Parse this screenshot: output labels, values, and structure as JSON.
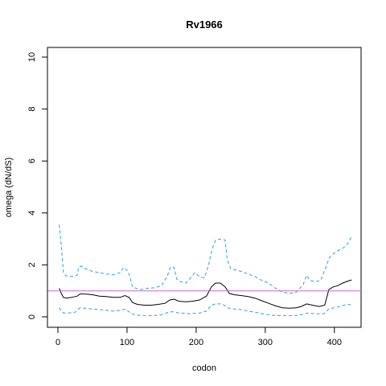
{
  "chart_data": {
    "type": "line",
    "title": "Rv1966",
    "xlabel": "codon",
    "ylabel": "omega (dN/dS)",
    "xlim": [
      0,
      430
    ],
    "ylim": [
      0,
      10
    ],
    "x_ticks": [
      "0",
      "100",
      "200",
      "300",
      "400"
    ],
    "y_ticks": [
      "0",
      "2",
      "4",
      "6",
      "8",
      "10"
    ],
    "reference_line": {
      "y": 1,
      "color": "#cc66cc"
    },
    "colors": {
      "estimate": "#000000",
      "interval": "#2b9fe0"
    },
    "series": [
      {
        "role": "upper",
        "line": "dashed",
        "points": [
          [
            2,
            3.55
          ],
          [
            5,
            2.7
          ],
          [
            8,
            1.7
          ],
          [
            12,
            1.58
          ],
          [
            20,
            1.55
          ],
          [
            28,
            1.6
          ],
          [
            30,
            1.92
          ],
          [
            35,
            1.95
          ],
          [
            40,
            1.85
          ],
          [
            50,
            1.75
          ],
          [
            60,
            1.7
          ],
          [
            70,
            1.65
          ],
          [
            80,
            1.62
          ],
          [
            90,
            1.7
          ],
          [
            95,
            1.9
          ],
          [
            100,
            1.8
          ],
          [
            103,
            1.65
          ],
          [
            108,
            1.15
          ],
          [
            115,
            1.08
          ],
          [
            120,
            1.05
          ],
          [
            130,
            1.1
          ],
          [
            140,
            1.12
          ],
          [
            150,
            1.2
          ],
          [
            158,
            1.55
          ],
          [
            163,
            1.92
          ],
          [
            168,
            1.9
          ],
          [
            172,
            1.45
          ],
          [
            178,
            1.35
          ],
          [
            185,
            1.3
          ],
          [
            192,
            1.5
          ],
          [
            198,
            1.7
          ],
          [
            205,
            1.55
          ],
          [
            212,
            1.5
          ],
          [
            218,
            2.0
          ],
          [
            223,
            2.6
          ],
          [
            228,
            2.95
          ],
          [
            235,
            3.0
          ],
          [
            242,
            2.95
          ],
          [
            245,
            2.2
          ],
          [
            250,
            1.85
          ],
          [
            258,
            1.8
          ],
          [
            265,
            1.75
          ],
          [
            275,
            1.65
          ],
          [
            285,
            1.55
          ],
          [
            295,
            1.4
          ],
          [
            305,
            1.3
          ],
          [
            315,
            1.1
          ],
          [
            325,
            0.95
          ],
          [
            335,
            0.9
          ],
          [
            345,
            0.95
          ],
          [
            355,
            1.25
          ],
          [
            360,
            1.6
          ],
          [
            365,
            1.4
          ],
          [
            372,
            1.35
          ],
          [
            380,
            1.4
          ],
          [
            387,
            1.85
          ],
          [
            393,
            2.3
          ],
          [
            400,
            2.45
          ],
          [
            405,
            2.55
          ],
          [
            410,
            2.6
          ],
          [
            415,
            2.7
          ],
          [
            420,
            2.85
          ],
          [
            425,
            3.1
          ]
        ]
      },
      {
        "role": "estimate",
        "line": "solid",
        "points": [
          [
            2,
            1.1
          ],
          [
            5,
            0.9
          ],
          [
            8,
            0.75
          ],
          [
            12,
            0.72
          ],
          [
            20,
            0.75
          ],
          [
            28,
            0.8
          ],
          [
            32,
            0.88
          ],
          [
            40,
            0.88
          ],
          [
            50,
            0.85
          ],
          [
            60,
            0.8
          ],
          [
            70,
            0.78
          ],
          [
            80,
            0.75
          ],
          [
            90,
            0.75
          ],
          [
            97,
            0.82
          ],
          [
            103,
            0.75
          ],
          [
            108,
            0.55
          ],
          [
            115,
            0.48
          ],
          [
            125,
            0.45
          ],
          [
            135,
            0.45
          ],
          [
            145,
            0.48
          ],
          [
            155,
            0.52
          ],
          [
            162,
            0.65
          ],
          [
            168,
            0.68
          ],
          [
            175,
            0.6
          ],
          [
            185,
            0.58
          ],
          [
            195,
            0.6
          ],
          [
            205,
            0.65
          ],
          [
            215,
            0.8
          ],
          [
            222,
            1.15
          ],
          [
            228,
            1.3
          ],
          [
            235,
            1.3
          ],
          [
            242,
            1.15
          ],
          [
            248,
            0.9
          ],
          [
            255,
            0.85
          ],
          [
            265,
            0.82
          ],
          [
            275,
            0.78
          ],
          [
            285,
            0.72
          ],
          [
            295,
            0.62
          ],
          [
            305,
            0.52
          ],
          [
            315,
            0.42
          ],
          [
            325,
            0.35
          ],
          [
            335,
            0.33
          ],
          [
            345,
            0.35
          ],
          [
            352,
            0.4
          ],
          [
            360,
            0.5
          ],
          [
            368,
            0.45
          ],
          [
            378,
            0.4
          ],
          [
            386,
            0.45
          ],
          [
            392,
            1.05
          ],
          [
            398,
            1.15
          ],
          [
            405,
            1.2
          ],
          [
            412,
            1.3
          ],
          [
            420,
            1.38
          ],
          [
            425,
            1.42
          ]
        ]
      },
      {
        "role": "lower",
        "line": "dashed",
        "points": [
          [
            2,
            0.35
          ],
          [
            5,
            0.22
          ],
          [
            8,
            0.15
          ],
          [
            15,
            0.15
          ],
          [
            25,
            0.18
          ],
          [
            32,
            0.35
          ],
          [
            40,
            0.33
          ],
          [
            50,
            0.3
          ],
          [
            60,
            0.28
          ],
          [
            70,
            0.25
          ],
          [
            80,
            0.22
          ],
          [
            90,
            0.25
          ],
          [
            98,
            0.3
          ],
          [
            105,
            0.15
          ],
          [
            112,
            0.07
          ],
          [
            125,
            0.05
          ],
          [
            140,
            0.05
          ],
          [
            150,
            0.08
          ],
          [
            160,
            0.18
          ],
          [
            168,
            0.2
          ],
          [
            175,
            0.15
          ],
          [
            190,
            0.12
          ],
          [
            205,
            0.15
          ],
          [
            215,
            0.22
          ],
          [
            222,
            0.45
          ],
          [
            228,
            0.5
          ],
          [
            238,
            0.5
          ],
          [
            245,
            0.35
          ],
          [
            255,
            0.3
          ],
          [
            265,
            0.28
          ],
          [
            275,
            0.22
          ],
          [
            285,
            0.18
          ],
          [
            295,
            0.12
          ],
          [
            305,
            0.08
          ],
          [
            315,
            0.05
          ],
          [
            330,
            0.05
          ],
          [
            345,
            0.05
          ],
          [
            355,
            0.1
          ],
          [
            362,
            0.15
          ],
          [
            372,
            0.12
          ],
          [
            385,
            0.12
          ],
          [
            392,
            0.3
          ],
          [
            400,
            0.35
          ],
          [
            410,
            0.42
          ],
          [
            418,
            0.48
          ],
          [
            425,
            0.46
          ]
        ]
      }
    ]
  }
}
